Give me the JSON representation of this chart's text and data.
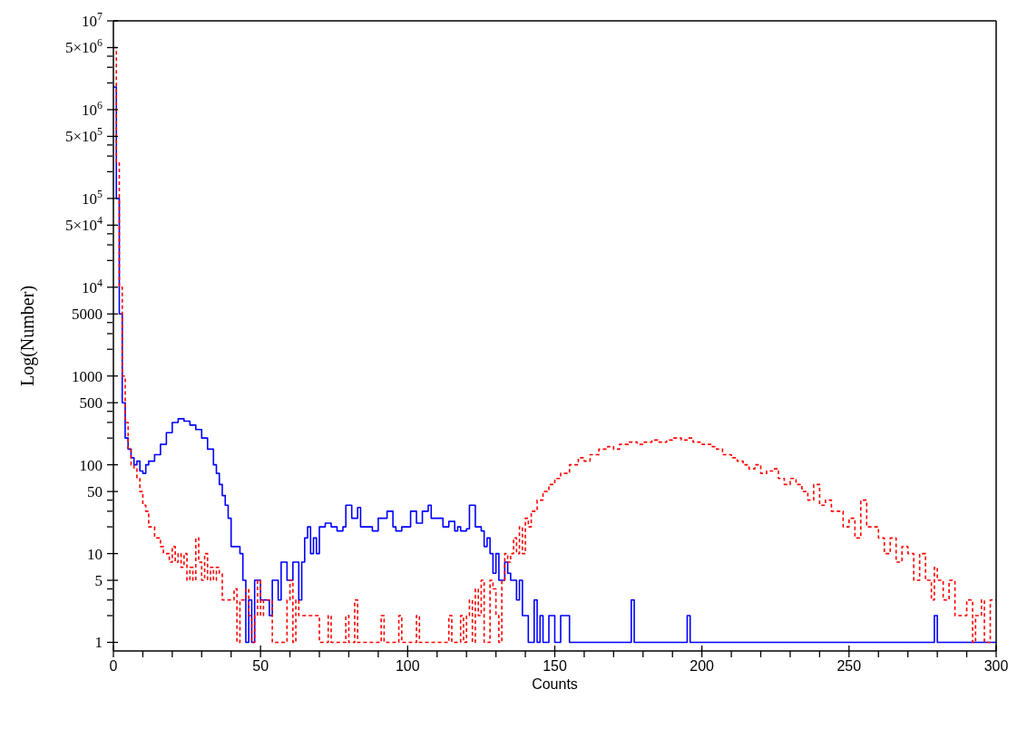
{
  "chart_data": {
    "type": "step",
    "xlabel": "Counts",
    "ylabel": "Log(Number)",
    "log": "y",
    "xlim": [
      0,
      300
    ],
    "ylim": [
      0.8,
      10000000
    ],
    "xticks": [
      0,
      {
        "value": 10,
        "label": null
      },
      {
        "value": 20,
        "label": null
      },
      {
        "value": 30,
        "label": null
      },
      {
        "value": 40,
        "label": null
      },
      50,
      {
        "value": 60,
        "label": null
      },
      {
        "value": 70,
        "label": null
      },
      {
        "value": 80,
        "label": null
      },
      {
        "value": 90,
        "label": null
      },
      100,
      {
        "value": 110,
        "label": null
      },
      {
        "value": 120,
        "label": null
      },
      {
        "value": 130,
        "label": null
      },
      {
        "value": 140,
        "label": null
      },
      150,
      {
        "value": 160,
        "label": null
      },
      {
        "value": 170,
        "label": null
      },
      {
        "value": 180,
        "label": null
      },
      {
        "value": 190,
        "label": null
      },
      200,
      {
        "value": 210,
        "label": null
      },
      {
        "value": 220,
        "label": null
      },
      {
        "value": 230,
        "label": null
      },
      {
        "value": 240,
        "label": null
      },
      250,
      {
        "value": 260,
        "label": null
      },
      {
        "value": 270,
        "label": null
      },
      {
        "value": 280,
        "label": null
      },
      {
        "value": 290,
        "label": null
      },
      300
    ],
    "yticks": [
      1,
      {
        "value": 2,
        "label": null
      },
      {
        "value": 3,
        "label": null
      },
      {
        "value": 4,
        "label": null
      },
      5,
      10,
      {
        "value": 20,
        "label": null
      },
      {
        "value": 30,
        "label": null
      },
      {
        "value": 40,
        "label": null
      },
      50,
      100,
      {
        "value": 200,
        "label": null
      },
      {
        "value": 300,
        "label": null
      },
      {
        "value": 400,
        "label": null
      },
      500,
      1000,
      {
        "value": 2000,
        "label": null
      },
      {
        "value": 3000,
        "label": null
      },
      {
        "value": 4000,
        "label": null
      },
      5000,
      {
        "value": 10000,
        "label": "10$^{4}$"
      },
      {
        "value": 20000,
        "label": null
      },
      {
        "value": 30000,
        "label": null
      },
      {
        "value": 40000,
        "label": null
      },
      {
        "value": 50000,
        "label": "5×10$^{4}$"
      },
      {
        "value": 100000,
        "label": "10$^{5}$"
      },
      {
        "value": 200000,
        "label": null
      },
      {
        "value": 300000,
        "label": null
      },
      {
        "value": 400000,
        "label": null
      },
      {
        "value": 500000,
        "label": "5×10$^{5}$"
      },
      {
        "value": 1000000,
        "label": "10$^{6}$"
      },
      {
        "value": 2000000,
        "label": null
      },
      {
        "value": 3000000,
        "label": null
      },
      {
        "value": 4000000,
        "label": null
      },
      {
        "value": 5000000,
        "label": "5×10$^{6}$"
      },
      {
        "value": 10000000,
        "label": "10$^{7}$"
      }
    ],
    "series": [
      {
        "color": "#0000ff",
        "line_style": "solid",
        "x": [
          0,
          1,
          2,
          3,
          4,
          5,
          6,
          7,
          8,
          9,
          10,
          11,
          12,
          14,
          16,
          18,
          20,
          22,
          24,
          26,
          28,
          30,
          32,
          34,
          35,
          36,
          37,
          38,
          39,
          40,
          42,
          43,
          44,
          45,
          46,
          47,
          48,
          50,
          52,
          53,
          54,
          56,
          57,
          59,
          61,
          63,
          64,
          65,
          66,
          67,
          68,
          69,
          70,
          72,
          74,
          76,
          78,
          79,
          81,
          83,
          84,
          86,
          88,
          90,
          92,
          93,
          95,
          96,
          98,
          100,
          101,
          103,
          105,
          107,
          108,
          110,
          112,
          114,
          116,
          117,
          118,
          120,
          121,
          123,
          125,
          126,
          127,
          128,
          129,
          130,
          131,
          133,
          134,
          135,
          137,
          138,
          139,
          141,
          143,
          144,
          145,
          146,
          148,
          150,
          152,
          155,
          176,
          177,
          195,
          196,
          279,
          280,
          300
        ],
        "values": [
          1800000,
          100000,
          5000,
          500,
          200,
          150,
          120,
          100,
          110,
          85,
          80,
          100,
          110,
          130,
          170,
          230,
          300,
          330,
          310,
          280,
          250,
          200,
          150,
          100,
          80,
          60,
          45,
          35,
          25,
          12,
          12,
          10,
          5,
          1,
          3,
          1,
          5,
          3,
          3,
          2,
          5,
          3,
          8,
          5,
          8,
          3,
          8,
          15,
          20,
          10,
          15,
          10,
          20,
          22,
          20,
          18,
          20,
          35,
          25,
          33,
          20,
          20,
          18,
          25,
          25,
          30,
          20,
          18,
          20,
          20,
          30,
          22,
          30,
          35,
          25,
          25,
          20,
          23,
          18,
          20,
          18,
          19,
          35,
          20,
          18,
          12,
          15,
          10,
          6,
          10,
          5,
          8,
          6,
          5,
          3,
          5,
          2,
          1,
          3,
          1,
          2,
          1,
          2,
          1,
          2,
          1,
          3,
          1,
          2,
          1,
          2,
          1,
          1
        ]
      },
      {
        "color": "#ff0000",
        "line_style": "dashed",
        "x": [
          0,
          1,
          2,
          3,
          4,
          5,
          6,
          7,
          8,
          9,
          10,
          11,
          12,
          13,
          14,
          15,
          16,
          17,
          18,
          19,
          20,
          21,
          22,
          23,
          24,
          25,
          26,
          27,
          28,
          29,
          30,
          31,
          32,
          33,
          34,
          35,
          36,
          37,
          38,
          40,
          41,
          42,
          43,
          45,
          46,
          47,
          48,
          49,
          50,
          51,
          52,
          54,
          58,
          59,
          60,
          61,
          62,
          63,
          64,
          66,
          68,
          70,
          72,
          73,
          74,
          79,
          80,
          82,
          83,
          90,
          91,
          92,
          96,
          97,
          98,
          103,
          104,
          114,
          115,
          118,
          119,
          120,
          121,
          122,
          123,
          124,
          125,
          126,
          128,
          129,
          130,
          131,
          132,
          133,
          134,
          135,
          136,
          137,
          138,
          139,
          140,
          141,
          142,
          144,
          146,
          148,
          150,
          152,
          155,
          158,
          160,
          162,
          165,
          168,
          170,
          172,
          175,
          178,
          180,
          183,
          185,
          188,
          190,
          193,
          195,
          197,
          200,
          203,
          205,
          207,
          210,
          212,
          214,
          216,
          218,
          220,
          222,
          224,
          226,
          228,
          230,
          232,
          234,
          236,
          238,
          240,
          242,
          244,
          246,
          248,
          250,
          252,
          254,
          256,
          258,
          260,
          262,
          264,
          266,
          268,
          270,
          272,
          274,
          276,
          278,
          279,
          280,
          282,
          284,
          286,
          288,
          290,
          292,
          293,
          295,
          296,
          298,
          300
        ],
        "values": [
          5000000,
          250000,
          10000,
          1000,
          300,
          150,
          100,
          90,
          70,
          50,
          35,
          30,
          20,
          20,
          15,
          15,
          12,
          10,
          10,
          8,
          12,
          8,
          10,
          7,
          10,
          5,
          7,
          5,
          15,
          8,
          5,
          10,
          5,
          7,
          5,
          7,
          6,
          3,
          3,
          3,
          4,
          1,
          3,
          4,
          2,
          1,
          2,
          5,
          2,
          3,
          3,
          1,
          1,
          3,
          5,
          1,
          3,
          2,
          2,
          2,
          2,
          1,
          1,
          2,
          1,
          2,
          1,
          3,
          1,
          1,
          2,
          1,
          1,
          2,
          1,
          2,
          1,
          2,
          1,
          2,
          1,
          2,
          3,
          1,
          4,
          2,
          5,
          1,
          5,
          4,
          2,
          1,
          5,
          10,
          8,
          10,
          15,
          10,
          20,
          10,
          25,
          20,
          30,
          40,
          50,
          60,
          70,
          80,
          100,
          120,
          110,
          130,
          150,
          160,
          150,
          170,
          180,
          170,
          180,
          190,
          180,
          190,
          200,
          190,
          200,
          180,
          170,
          160,
          150,
          130,
          120,
          110,
          100,
          90,
          100,
          80,
          85,
          90,
          70,
          60,
          70,
          60,
          50,
          40,
          60,
          35,
          40,
          30,
          30,
          20,
          25,
          15,
          40,
          20,
          20,
          15,
          10,
          15,
          8,
          12,
          10,
          5,
          10,
          5,
          3,
          7,
          5,
          3,
          5,
          2,
          2,
          3,
          1,
          2,
          3,
          1,
          3,
          3
        ]
      }
    ]
  }
}
